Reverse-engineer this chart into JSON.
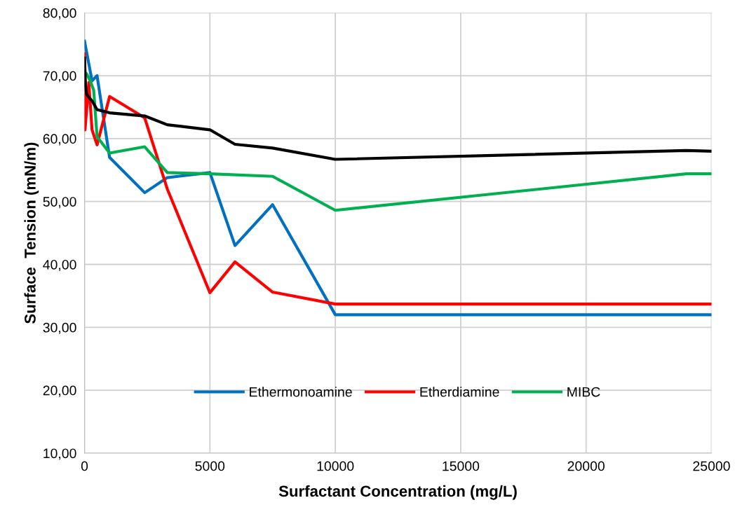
{
  "chart_data": {
    "type": "line",
    "xlabel": "Surfactant Concentration (mg/L)",
    "ylabel": "Surface  Tension (mN/m)",
    "xlim": [
      0,
      25000
    ],
    "xticks": [
      0,
      5000,
      10000,
      15000,
      20000,
      25000
    ],
    "ylim": [
      10,
      80
    ],
    "yticks": [
      {
        "value": 10,
        "label": "10,00"
      },
      {
        "value": 20,
        "label": "20,00"
      },
      {
        "value": 30,
        "label": "30,00"
      },
      {
        "value": 40,
        "label": "40,00"
      },
      {
        "value": 50,
        "label": "50,00"
      },
      {
        "value": 60,
        "label": "60,00"
      },
      {
        "value": 70,
        "label": "70,00"
      },
      {
        "value": 80,
        "label": "80,00"
      }
    ],
    "grid": true,
    "legend": "bottom",
    "marker": "none",
    "line_style": "solid",
    "series": [
      {
        "name": "Ethermonoamine",
        "color": "#0070c0",
        "x": [
          0,
          300,
          500,
          1000,
          2400,
          3300,
          5000,
          6000,
          7500,
          10000,
          24000,
          25000
        ],
        "values": [
          75.5,
          69.2,
          70,
          57,
          51.4,
          53.8,
          54.6,
          43,
          49.5,
          32,
          32,
          32
        ]
      },
      {
        "name": "Etherdiamine",
        "color": "#ff0000",
        "x": [
          0,
          20,
          170,
          300,
          500,
          1000,
          2400,
          3300,
          5000,
          6000,
          7500,
          10000,
          24000,
          25000
        ],
        "values": [
          73.5,
          61.4,
          68.9,
          61.4,
          59,
          66.7,
          63.3,
          52,
          35.5,
          40.4,
          35.6,
          33.7,
          33.7,
          33.7
        ]
      },
      {
        "name": "MIBC",
        "color": "#00b050",
        "x": [
          0,
          85,
          225,
          365,
          500,
          1000,
          2400,
          3300,
          5000,
          7500,
          10000,
          24000,
          25000
        ],
        "values": [
          70.5,
          70.3,
          69.2,
          67.7,
          60.3,
          57.7,
          58.7,
          54.6,
          54.4,
          54,
          48.6,
          54.4,
          54.4
        ]
      },
      {
        "color": "#000000",
        "x": [
          0,
          40,
          85,
          317,
          500,
          1000,
          2400,
          3300,
          5000,
          6000,
          7500,
          10000,
          24000,
          25000
        ],
        "values": [
          72.8,
          68.5,
          67,
          65.9,
          64.6,
          64.1,
          63.6,
          62.2,
          61.4,
          59.1,
          58.5,
          56.7,
          58.1,
          58
        ]
      }
    ]
  }
}
